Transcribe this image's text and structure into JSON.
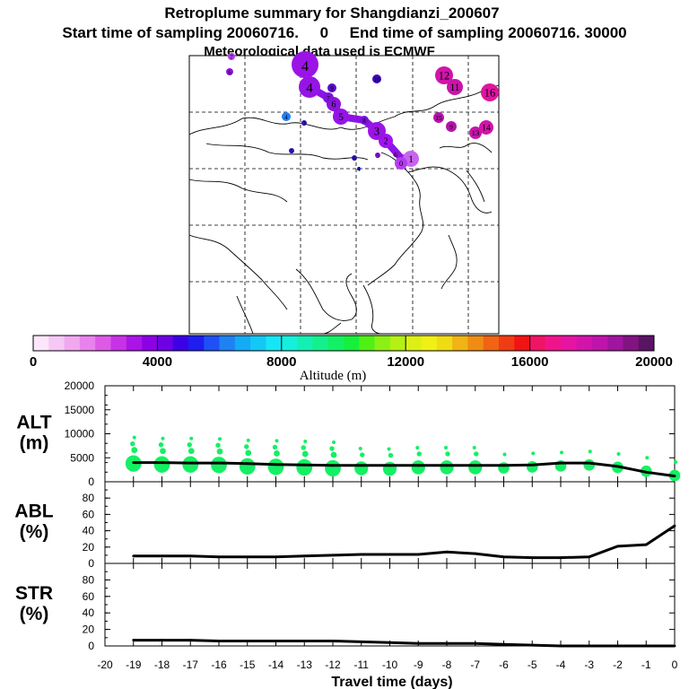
{
  "header": {
    "title": "Retroplume summary for Shangdianzi_200607",
    "line2": "Start time of sampling 20060716.     0     End time of sampling 20060716. 30000",
    "line3": "Meteorological data used is ECMWF"
  },
  "map": {
    "plume_labels": [
      "0",
      "1",
      "2",
      "3",
      "4",
      "5",
      "6",
      "7",
      "8",
      "9",
      "10",
      "11",
      "12",
      "13",
      "14",
      "15",
      "16"
    ]
  },
  "colorbar": {
    "title": "Altitude (m)",
    "min": 0,
    "max": 20000,
    "tick_labels": [
      "0",
      "4000",
      "8000",
      "12000",
      "16000",
      "20000"
    ],
    "colors": [
      "#fce6fc",
      "#f5c8f5",
      "#f0a8f0",
      "#e882ec",
      "#dc5ae6",
      "#c832e6",
      "#aa14e6",
      "#8c00e6",
      "#6e00e6",
      "#3c00e6",
      "#1e1ef0",
      "#1e50f5",
      "#1e82f5",
      "#14aaf5",
      "#14c8f5",
      "#14e6f5",
      "#14f0dc",
      "#14f0b4",
      "#14f08c",
      "#14f064",
      "#14f03c",
      "#50f014",
      "#8cf014",
      "#b4f014",
      "#dcf014",
      "#f0f014",
      "#f0dc14",
      "#f0b414",
      "#f08c14",
      "#f06414",
      "#f03c14",
      "#f01414",
      "#f01464",
      "#f0148c",
      "#e614a0",
      "#d214aa",
      "#be14aa",
      "#a014a0",
      "#821482",
      "#5a1464"
    ]
  },
  "chart_data": [
    {
      "type": "line",
      "panel": "ALT",
      "ylabel": "ALT\n(m)",
      "xlabel": "Travel time (days)",
      "xlim": [
        -20,
        0
      ],
      "ylim": [
        0,
        20000
      ],
      "yticks": [
        "0",
        "5000",
        "10000",
        "15000",
        "20000"
      ],
      "x": [
        -19,
        -18,
        -17,
        -16,
        -15,
        -14,
        -13,
        -12,
        -11,
        -10,
        -9,
        -8,
        -7,
        -6,
        -5,
        -4,
        -3,
        -2,
        -1,
        0
      ],
      "series": [
        {
          "name": "median altitude",
          "values": [
            4000,
            4000,
            3900,
            3900,
            3800,
            3600,
            3500,
            3400,
            3400,
            3400,
            3400,
            3400,
            3400,
            3400,
            3500,
            3900,
            3900,
            3200,
            2000,
            1200
          ]
        }
      ],
      "scatter": {
        "name": "plume altitude clusters",
        "x": [
          -19,
          -18,
          -17,
          -16,
          -15,
          -14,
          -13,
          -12,
          -11,
          -10,
          -9,
          -8,
          -7,
          -6,
          -5,
          -4,
          -3,
          -2,
          -1,
          0
        ],
        "y": [
          3800,
          3600,
          3600,
          3500,
          3200,
          3100,
          3000,
          2800,
          2800,
          2700,
          3000,
          3000,
          3000,
          2900,
          3100,
          3300,
          3500,
          3000,
          2200,
          1300
        ],
        "spread": [
          3,
          3,
          3,
          3,
          3,
          3,
          3,
          3,
          2,
          2,
          2,
          2,
          2,
          1,
          1,
          1,
          1,
          1,
          1,
          1
        ]
      }
    },
    {
      "type": "line",
      "panel": "ABL",
      "ylabel": "ABL\n(%)",
      "xlim": [
        -20,
        0
      ],
      "ylim": [
        0,
        100
      ],
      "yticks": [
        "0",
        "20",
        "40",
        "60",
        "80"
      ],
      "x": [
        -19,
        -18,
        -17,
        -16,
        -15,
        -14,
        -13,
        -12,
        -11,
        -10,
        -9,
        -8,
        -7,
        -6,
        -5,
        -4,
        -3,
        -2,
        -1,
        0
      ],
      "series": [
        {
          "name": "fraction in boundary layer",
          "values": [
            9,
            9,
            9,
            8,
            8,
            8,
            9,
            10,
            11,
            11,
            11,
            14,
            12,
            8,
            7,
            7,
            8,
            21,
            23,
            46
          ]
        }
      ]
    },
    {
      "type": "line",
      "panel": "STR",
      "ylabel": "STR\n(%)",
      "xlim": [
        -20,
        0
      ],
      "ylim": [
        0,
        100
      ],
      "yticks": [
        "0",
        "20",
        "40",
        "60",
        "80"
      ],
      "xticks": [
        "-20",
        "-19",
        "-18",
        "-17",
        "-16",
        "-15",
        "-14",
        "-13",
        "-12",
        "-11",
        "-10",
        "-9",
        "-8",
        "-7",
        "-6",
        "-5",
        "-4",
        "-3",
        "-2",
        "-1",
        "0"
      ],
      "x": [
        -19,
        -18,
        -17,
        -16,
        -15,
        -14,
        -13,
        -12,
        -11,
        -10,
        -9,
        -8,
        -7,
        -6,
        -5,
        -4,
        -3,
        -2,
        -1,
        0
      ],
      "series": [
        {
          "name": "fraction in stratosphere",
          "values": [
            7,
            7,
            7,
            6,
            6,
            6,
            6,
            6,
            5,
            4,
            3,
            3,
            3,
            2,
            1,
            0,
            0,
            0,
            0,
            0
          ]
        }
      ]
    }
  ]
}
